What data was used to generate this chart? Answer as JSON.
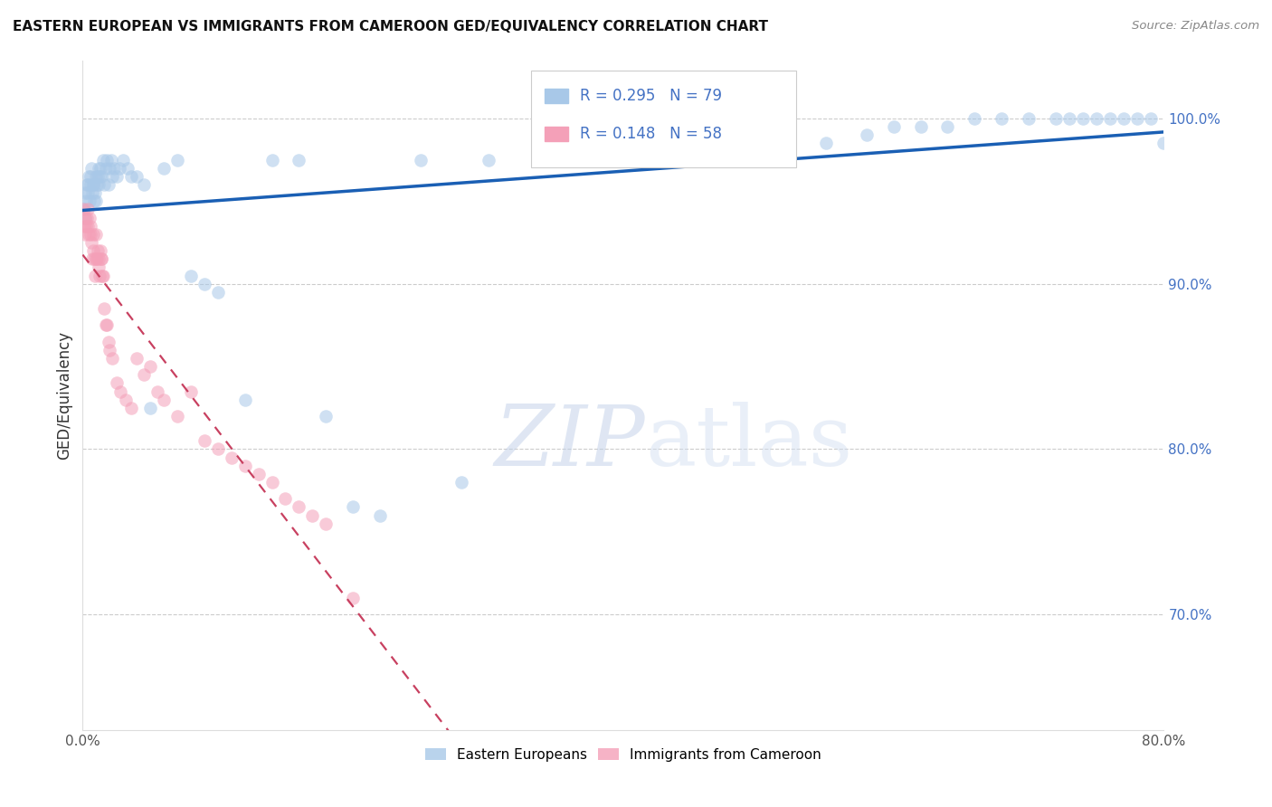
{
  "title": "EASTERN EUROPEAN VS IMMIGRANTS FROM CAMEROON GED/EQUIVALENCY CORRELATION CHART",
  "source": "Source: ZipAtlas.com",
  "ylabel": "GED/Equivalency",
  "yticks": [
    70.0,
    80.0,
    90.0,
    100.0
  ],
  "ytick_labels": [
    "70.0%",
    "80.0%",
    "90.0%",
    "100.0%"
  ],
  "xmin": 0.0,
  "xmax": 80.0,
  "ymin": 63.0,
  "ymax": 103.5,
  "legend_blue_r": "0.295",
  "legend_blue_n": "79",
  "legend_pink_r": "0.148",
  "legend_pink_n": "58",
  "legend_label_blue": "Eastern Europeans",
  "legend_label_pink": "Immigrants from Cameroon",
  "blue_color": "#a8c8e8",
  "pink_color": "#f4a0b8",
  "blue_line_color": "#1a5fb4",
  "pink_line_color": "#c84060",
  "watermark_zip": "ZIP",
  "watermark_atlas": "atlas",
  "blue_x": [
    0.1,
    0.15,
    0.2,
    0.25,
    0.3,
    0.35,
    0.4,
    0.45,
    0.5,
    0.55,
    0.6,
    0.65,
    0.7,
    0.75,
    0.8,
    0.85,
    0.9,
    0.95,
    1.0,
    1.05,
    1.1,
    1.15,
    1.2,
    1.25,
    1.3,
    1.4,
    1.5,
    1.6,
    1.7,
    1.8,
    1.9,
    2.0,
    2.1,
    2.2,
    2.3,
    2.5,
    2.7,
    3.0,
    3.3,
    3.6,
    4.0,
    4.5,
    5.0,
    6.0,
    7.0,
    8.0,
    9.0,
    10.0,
    12.0,
    14.0,
    16.0,
    18.0,
    20.0,
    22.0,
    25.0,
    28.0,
    30.0,
    35.0,
    40.0,
    45.0,
    50.0,
    52.0,
    55.0,
    58.0,
    60.0,
    62.0,
    64.0,
    66.0,
    68.0,
    70.0,
    72.0,
    73.0,
    74.0,
    75.0,
    76.0,
    77.0,
    78.0,
    79.0,
    80.0
  ],
  "blue_y": [
    94.5,
    94.0,
    95.5,
    95.0,
    96.0,
    95.5,
    96.0,
    96.5,
    95.0,
    96.0,
    96.5,
    97.0,
    95.5,
    96.0,
    96.0,
    95.0,
    95.5,
    96.5,
    95.0,
    96.0,
    96.5,
    97.0,
    96.0,
    96.5,
    97.0,
    96.5,
    97.5,
    96.0,
    97.0,
    97.5,
    96.0,
    97.0,
    97.5,
    96.5,
    97.0,
    96.5,
    97.0,
    97.5,
    97.0,
    96.5,
    96.5,
    96.0,
    82.5,
    97.0,
    97.5,
    90.5,
    90.0,
    89.5,
    83.0,
    97.5,
    97.5,
    82.0,
    76.5,
    76.0,
    97.5,
    78.0,
    97.5,
    98.0,
    98.5,
    98.5,
    99.0,
    99.0,
    98.5,
    99.0,
    99.5,
    99.5,
    99.5,
    100.0,
    100.0,
    100.0,
    100.0,
    100.0,
    100.0,
    100.0,
    100.0,
    100.0,
    100.0,
    100.0,
    98.5
  ],
  "pink_x": [
    0.05,
    0.1,
    0.15,
    0.2,
    0.25,
    0.3,
    0.35,
    0.4,
    0.45,
    0.5,
    0.55,
    0.6,
    0.65,
    0.7,
    0.75,
    0.8,
    0.85,
    0.9,
    0.95,
    1.0,
    1.05,
    1.1,
    1.15,
    1.2,
    1.25,
    1.3,
    1.35,
    1.4,
    1.45,
    1.5,
    1.6,
    1.7,
    1.8,
    1.9,
    2.0,
    2.2,
    2.5,
    2.8,
    3.2,
    3.6,
    4.0,
    4.5,
    5.0,
    5.5,
    6.0,
    7.0,
    8.0,
    9.0,
    10.0,
    11.0,
    12.0,
    13.0,
    14.0,
    15.0,
    16.0,
    17.0,
    18.0,
    20.0
  ],
  "pink_y": [
    94.5,
    93.5,
    94.0,
    93.0,
    93.5,
    94.0,
    93.5,
    94.5,
    93.0,
    94.0,
    93.0,
    93.5,
    92.5,
    91.5,
    93.0,
    92.0,
    91.5,
    90.5,
    91.5,
    93.0,
    91.5,
    92.0,
    91.0,
    91.5,
    90.5,
    92.0,
    91.5,
    91.5,
    90.5,
    90.5,
    88.5,
    87.5,
    87.5,
    86.5,
    86.0,
    85.5,
    84.0,
    83.5,
    83.0,
    82.5,
    85.5,
    84.5,
    85.0,
    83.5,
    83.0,
    82.0,
    83.5,
    80.5,
    80.0,
    79.5,
    79.0,
    78.5,
    78.0,
    77.0,
    76.5,
    76.0,
    75.5,
    71.0
  ]
}
